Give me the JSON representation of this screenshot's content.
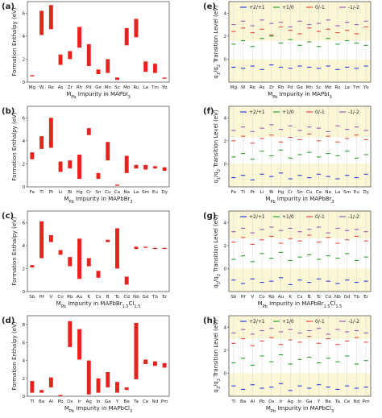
{
  "colors": {
    "bar": "#e8231d",
    "band_yellow": "#fbf6d6",
    "grid": "#c8c8c8",
    "pos2p1": "#2a3fd9",
    "p1_0": "#29a02c",
    "n0_m1": "#e84a3c",
    "m1_m2": "#9b59b6"
  },
  "chart_data": [
    {
      "type": "bar",
      "panel_label": "(a)",
      "ylabel": "Formation Enthalpy (eV)",
      "xlabel": "M<sub>Pb</sub> Impurity in MAPbI<sub>3</sub>",
      "xlabel_plain": "MPb Impurity in MAPbI3",
      "ylim": [
        0,
        7
      ],
      "yticks": [
        "0",
        "2",
        "4",
        "6"
      ],
      "categories": [
        "Mg",
        "W",
        "Re",
        "As",
        "Zr",
        "Rh",
        "Pd",
        "Ge",
        "Mn",
        "Sc",
        "Mo",
        "Ru",
        "La",
        "Tm",
        "Yb"
      ],
      "ranges": [
        [
          0.5,
          0.6
        ],
        [
          4.1,
          6.2
        ],
        [
          4.6,
          6.7
        ],
        [
          1.5,
          2.4
        ],
        [
          2.0,
          2.7
        ],
        [
          3.0,
          4.8
        ],
        [
          1.4,
          3.3
        ],
        [
          0.7,
          1.1
        ],
        [
          0.8,
          2.0
        ],
        [
          0.2,
          0.4
        ],
        [
          3.2,
          4.7
        ],
        [
          3.9,
          5.5
        ],
        [
          0.9,
          1.8
        ],
        [
          0.8,
          1.6
        ],
        [
          0.3,
          0.4
        ]
      ]
    },
    {
      "type": "bar",
      "panel_label": "(b)",
      "ylabel": "Formation Enthalpy (eV)",
      "xlabel": "M<sub>Pb</sub> Impurity in MAPbBr<sub>3</sub>",
      "xlabel_plain": "MPb Impurity in MAPbBr3",
      "ylim": [
        0,
        7
      ],
      "yticks": [
        "0",
        "2",
        "4",
        "6"
      ],
      "categories": [
        "Fe",
        "Ti",
        "Pt",
        "Li",
        "Bi",
        "Hg",
        "Cr",
        "Sn",
        "Cu",
        "Ca",
        "Na",
        "La",
        "Sm",
        "Eu",
        "Dy"
      ],
      "ranges": [
        [
          2.4,
          3.0
        ],
        [
          3.3,
          4.4
        ],
        [
          3.4,
          6.0
        ],
        [
          1.3,
          2.2
        ],
        [
          1.6,
          2.3
        ],
        [
          0.7,
          2.8
        ],
        [
          4.5,
          5.1
        ],
        [
          0.7,
          1.2
        ],
        [
          2.3,
          3.9
        ],
        [
          0.1,
          0.2
        ],
        [
          1.2,
          2.7
        ],
        [
          1.6,
          1.9
        ],
        [
          1.5,
          1.9
        ],
        [
          1.6,
          1.8
        ],
        [
          1.4,
          1.7
        ]
      ]
    },
    {
      "type": "bar",
      "panel_label": "(c)",
      "ylabel": "Formation Enthalpy (eV)",
      "xlabel": "M<sub>Pb</sub> Impurity in MAPbBr<sub>1.5</sub>Cl<sub>1.5</sub>",
      "xlabel_plain": "MPb Impurity in MAPbBr1.5Cl1.5",
      "ylim": [
        0,
        7
      ],
      "yticks": [
        "0",
        "2",
        "4",
        "6"
      ],
      "categories": [
        "Sb",
        "Hf",
        "V",
        "Co",
        "Rb",
        "Au",
        "K",
        "Cs",
        "B",
        "Tc",
        "Cd",
        "Nb",
        "Gd",
        "Tb",
        "Er"
      ],
      "ranges": [
        [
          2.1,
          2.3
        ],
        [
          2.9,
          6.1
        ],
        [
          4.3,
          4.9
        ],
        [
          3.2,
          3.6
        ],
        [
          2.2,
          3.0
        ],
        [
          1.1,
          4.6
        ],
        [
          2.2,
          2.9
        ],
        [
          1.2,
          1.8
        ],
        [
          4.3,
          4.5
        ],
        [
          2.0,
          5.5
        ],
        [
          0.6,
          1.3
        ],
        [
          3.7,
          3.9
        ],
        [
          3.8,
          3.9
        ],
        [
          3.7,
          3.8
        ],
        [
          3.7,
          3.8
        ]
      ]
    },
    {
      "type": "bar",
      "panel_label": "(d)",
      "ylabel": "Formation Enthalpy (eV)",
      "xlabel": "M<sub>Pb</sub> Impurity in MAPbCl<sub>3</sub>",
      "xlabel_plain": "MPb Impurity in MAPbCl3",
      "ylim": [
        0,
        9
      ],
      "yticks": [
        "0",
        "2",
        "4",
        "6",
        "8"
      ],
      "categories": [
        "Tl",
        "Ba",
        "Al",
        "Pb",
        "Os",
        "Ir",
        "Ag",
        "In",
        "Ga",
        "Y",
        "Be",
        "Ta",
        "Ce",
        "Nd",
        "Pm"
      ],
      "ranges": [
        [
          0.4,
          1.7
        ],
        [
          0.4,
          0.7
        ],
        [
          1.0,
          2.1
        ],
        [
          0.05,
          0.15
        ],
        [
          5.5,
          8.4
        ],
        [
          4.1,
          7.5
        ],
        [
          0.2,
          4.0
        ],
        [
          0.4,
          2.0
        ],
        [
          1.0,
          2.7
        ],
        [
          0.4,
          1.6
        ],
        [
          0.7,
          1.0
        ],
        [
          1.9,
          8.2
        ],
        [
          3.6,
          4.1
        ],
        [
          3.4,
          3.9
        ],
        [
          3.2,
          3.7
        ]
      ]
    },
    {
      "type": "scatter",
      "panel_label": "(e)",
      "ylabel": "q1/q2 Transition Level (eV)",
      "xlabel": "M<sub>Pb</sub> Impurity in MAPbI<sub>3</sub>",
      "xlabel_plain": "MPb Impurity in MAPbI3",
      "ylim": [
        -2,
        5
      ],
      "yticks": [
        "0",
        "2",
        "4"
      ],
      "band": [
        0,
        1.6
      ],
      "categories": [
        "Mg",
        "W",
        "Re",
        "As",
        "Zr",
        "Rh",
        "Pd",
        "Ge",
        "Mn",
        "Sc",
        "Mo",
        "Ru",
        "La",
        "Tm",
        "Yb"
      ],
      "legend": [
        "+2/+1",
        "+1/0",
        "0/-1",
        "-1/-2"
      ],
      "series": [
        {
          "name": "+2/+1",
          "values": [
            -0.7,
            -0.8,
            -0.6,
            -0.9,
            -0.5,
            -0.7,
            -0.8,
            -0.6,
            -0.7,
            -0.8,
            -0.6,
            -0.9,
            -0.7,
            -0.8,
            -0.6
          ]
        },
        {
          "name": "+1/0",
          "values": [
            1.3,
            1.6,
            1.1,
            1.8,
            2.0,
            1.4,
            1.7,
            1.2,
            1.5,
            1.1,
            1.8,
            1.3,
            1.6,
            1.4,
            1.2
          ]
        },
        {
          "name": "0/-1",
          "values": [
            2.4,
            2.7,
            2.3,
            2.6,
            2.1,
            2.8,
            2.5,
            2.2,
            2.7,
            2.4,
            2.6,
            2.3,
            2.5,
            2.2,
            2.8
          ]
        },
        {
          "name": "-1/-2",
          "values": [
            3.0,
            3.3,
            2.9,
            3.4,
            3.1,
            3.2,
            2.8,
            3.3,
            3.0,
            3.1,
            3.4,
            2.9,
            3.2,
            3.0,
            3.3
          ]
        }
      ]
    },
    {
      "type": "scatter",
      "panel_label": "(f)",
      "ylabel": "q1/q2 Transition Level (eV)",
      "xlabel": "M<sub>Pb</sub> Impurity in MAPbBr<sub>3</sub>",
      "xlabel_plain": "MPb Impurity in MAPbBr3",
      "ylim": [
        -2,
        5
      ],
      "yticks": [
        "0",
        "2",
        "4"
      ],
      "band": [
        0,
        2.3
      ],
      "categories": [
        "Fe",
        "Ti",
        "Pt",
        "Li",
        "Bi",
        "Hg",
        "Cr",
        "Sn",
        "Cu",
        "Ca",
        "Na",
        "La",
        "Sm",
        "Eu",
        "Dy"
      ],
      "legend": [
        "+2/+1",
        "+1/0",
        "0/-1",
        "-1/-2"
      ],
      "series": [
        {
          "name": "+2/+1",
          "values": [
            -1.2,
            -1.0,
            -1.4,
            -0.9,
            -1.1,
            -0.8,
            -1.3,
            -1.0,
            -1.2,
            -0.9,
            -1.1,
            -1.3,
            -1.0,
            -1.2,
            -0.9
          ]
        },
        {
          "name": "+1/0",
          "values": [
            0.6,
            0.9,
            0.4,
            1.1,
            0.7,
            1.2,
            0.5,
            0.8,
            1.0,
            0.6,
            0.9,
            0.7,
            1.1,
            0.5,
            0.8
          ]
        },
        {
          "name": "0/-1",
          "values": [
            2.0,
            2.4,
            1.8,
            2.2,
            2.5,
            1.9,
            2.3,
            2.1,
            2.6,
            2.0,
            2.4,
            1.9,
            2.2,
            2.5,
            2.1
          ]
        },
        {
          "name": "-1/-2",
          "values": [
            2.9,
            3.2,
            2.8,
            3.1,
            3.4,
            3.0,
            3.3,
            2.9,
            3.2,
            3.1,
            2.8,
            3.3,
            3.0,
            3.2,
            2.9
          ]
        }
      ]
    },
    {
      "type": "scatter",
      "panel_label": "(g)",
      "ylabel": "q1/q2 Transition Level (eV)",
      "xlabel": "M<sub>Pb</sub> Impurity in MAPbBr<sub>1.5</sub>Cl<sub>1.5</sub>",
      "xlabel_plain": "MPb Impurity in MAPbBr1.5Cl1.5",
      "ylim": [
        -2,
        5
      ],
      "yticks": [
        "0",
        "2",
        "4"
      ],
      "band": [
        0,
        2.6
      ],
      "categories": [
        "Sb",
        "Hf",
        "V",
        "Co",
        "Rb",
        "Au",
        "K",
        "Cs",
        "B",
        "Tc",
        "Cd",
        "Nb",
        "Gd",
        "Tb",
        "Er"
      ],
      "legend": [
        "+2/+1",
        "+1/0",
        "0/-1",
        "-1/-2"
      ],
      "series": [
        {
          "name": "+2/+1",
          "values": [
            -1.0,
            -1.3,
            -0.9,
            -1.2,
            -1.1,
            -0.8,
            -1.4,
            -1.0,
            -1.2,
            -0.9,
            -1.1,
            -1.3,
            -1.0,
            -1.2,
            -1.1
          ]
        },
        {
          "name": "+1/0",
          "values": [
            0.8,
            1.1,
            0.6,
            1.3,
            0.9,
            1.4,
            0.7,
            1.0,
            1.2,
            0.8,
            1.1,
            0.9,
            1.3,
            0.7,
            1.0
          ]
        },
        {
          "name": "0/-1",
          "values": [
            2.3,
            2.7,
            2.1,
            2.5,
            2.8,
            2.2,
            2.6,
            2.4,
            2.9,
            2.3,
            2.7,
            2.2,
            2.5,
            2.8,
            2.4
          ]
        },
        {
          "name": "-1/-2",
          "values": [
            3.2,
            3.5,
            3.1,
            3.4,
            3.6,
            3.3,
            3.5,
            3.2,
            3.4,
            3.6,
            3.1,
            3.5,
            3.3,
            3.4,
            3.2
          ]
        }
      ]
    },
    {
      "type": "scatter",
      "panel_label": "(h)",
      "ylabel": "q1/q2 Transition Level (eV)",
      "xlabel": "M<sub>Pb</sub> Impurity in MAPbCl<sub>3</sub>",
      "xlabel_plain": "MPb Impurity in MAPbCl3",
      "ylim": [
        -2,
        5
      ],
      "yticks": [
        "0",
        "2",
        "4"
      ],
      "band": [
        0,
        3.0
      ],
      "categories": [
        "Tl",
        "Ba",
        "Al",
        "Pb",
        "Os",
        "Ir",
        "Ag",
        "In",
        "Ga",
        "Y",
        "Be",
        "Ta",
        "Ce",
        "Nd",
        "Pm"
      ],
      "legend": [
        "+2/+1",
        "+1/0",
        "0/-1",
        "-1/-2"
      ],
      "series": [
        {
          "name": "+2/+1",
          "values": [
            -1.1,
            -1.4,
            -1.0,
            -1.3,
            -1.2,
            -0.9,
            -1.5,
            -1.1,
            -1.3,
            -1.0,
            -1.2,
            -1.4,
            -1.1,
            -1.3,
            -1.2
          ]
        },
        {
          "name": "+1/0",
          "values": [
            0.9,
            1.3,
            0.7,
            1.5,
            1.0,
            1.6,
            0.8,
            1.2,
            1.4,
            0.9,
            1.3,
            1.0,
            1.5,
            0.8,
            1.1
          ]
        },
        {
          "name": "0/-1",
          "values": [
            2.6,
            3.0,
            2.4,
            2.8,
            3.1,
            2.5,
            2.9,
            2.7,
            3.2,
            2.6,
            3.0,
            2.5,
            2.8,
            3.1,
            2.7
          ]
        },
        {
          "name": "-1/-2",
          "values": [
            3.5,
            3.8,
            3.4,
            3.7,
            3.9,
            3.6,
            3.8,
            3.5,
            3.7,
            3.9,
            3.4,
            3.8,
            3.6,
            3.7,
            3.5
          ]
        }
      ]
    }
  ]
}
